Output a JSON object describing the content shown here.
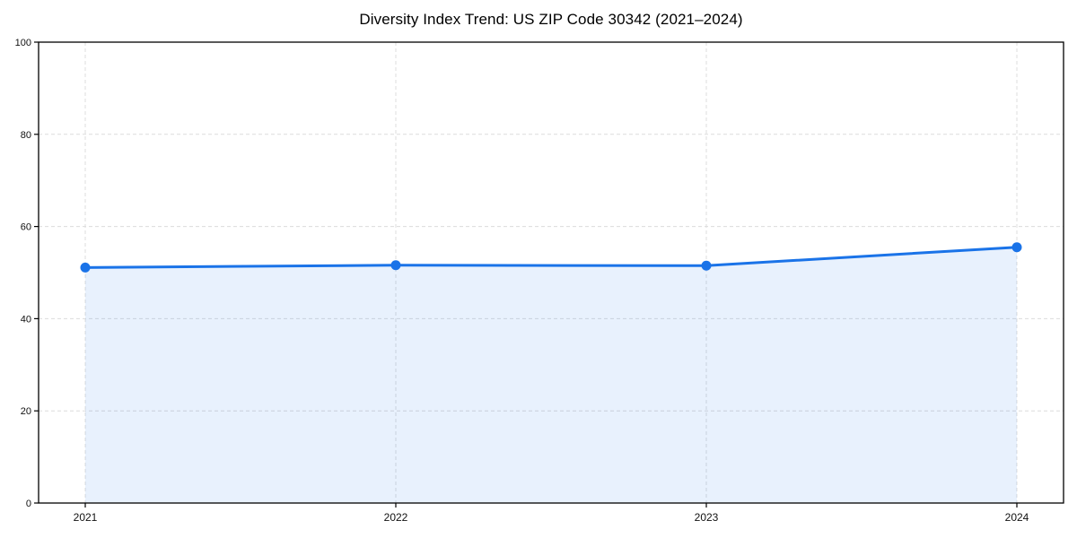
{
  "page": {
    "background": "#ffffff"
  },
  "chart_data": {
    "type": "area",
    "title": "Diversity Index Trend: US ZIP Code 30342 (2021–2024)",
    "categories": [
      "2021",
      "2022",
      "2023",
      "2024"
    ],
    "series": [
      {
        "name": "Diversity Index",
        "values": [
          51.1,
          51.6,
          51.5,
          55.5
        ]
      }
    ],
    "xlabel": "",
    "ylabel": "",
    "ylim": [
      0,
      100
    ],
    "y_ticks": [
      0,
      20,
      40,
      60,
      80,
      100
    ],
    "grid": "dashed-both-axes",
    "legend": "none",
    "marker": "circle",
    "colors": {
      "line": "#1a73e8",
      "marker": "#1a73e8",
      "fill": "rgba(26,115,232,0.10)",
      "gridline": "#dcdcdc",
      "axis": "#000000",
      "tick_label": "#111111",
      "title": "#000000",
      "background": "#ffffff"
    }
  }
}
